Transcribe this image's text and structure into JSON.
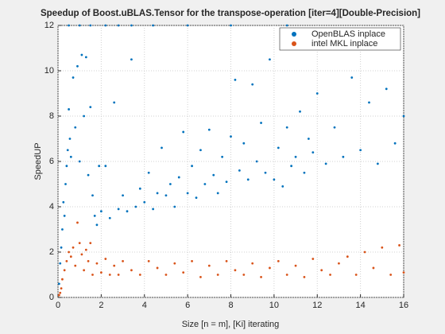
{
  "chart_data": {
    "type": "scatter",
    "title": "Speedup of Boost.uBLAS.Tensor for the transpose-operation [iter=4][Double-Precision]",
    "xlabel": "Size [n = m], [Ki] iterating",
    "ylabel": "SpeedUP",
    "xlim": [
      0,
      16
    ],
    "ylim": [
      0,
      12
    ],
    "xticks": [
      0,
      2,
      4,
      6,
      8,
      10,
      12,
      14,
      16
    ],
    "yticks": [
      0,
      2,
      4,
      6,
      8,
      10,
      12
    ],
    "grid": true,
    "legend": "upper right",
    "series": [
      {
        "name": "OpenBLAS inplace",
        "color": "#0072bd",
        "x": [
          0.05,
          0.1,
          0.15,
          0.2,
          0.25,
          0.3,
          0.35,
          0.4,
          0.45,
          0.5,
          0.55,
          0.6,
          0.7,
          0.8,
          0.9,
          1.0,
          1.1,
          1.2,
          1.3,
          1.4,
          1.5,
          1.6,
          1.7,
          1.8,
          1.9,
          2.0,
          2.2,
          2.4,
          2.6,
          2.8,
          3.0,
          3.2,
          3.4,
          3.6,
          3.8,
          4.0,
          4.2,
          4.4,
          4.6,
          4.8,
          5.0,
          5.2,
          5.4,
          5.6,
          5.8,
          6.0,
          6.2,
          6.4,
          6.6,
          6.8,
          7.0,
          7.2,
          7.4,
          7.6,
          7.8,
          8.0,
          8.2,
          8.4,
          8.6,
          8.8,
          9.0,
          9.2,
          9.4,
          9.6,
          9.8,
          10.0,
          10.2,
          10.4,
          10.6,
          10.8,
          11.0,
          11.2,
          11.4,
          11.6,
          11.8,
          12.0,
          12.4,
          12.8,
          13.2,
          13.6,
          14.0,
          14.4,
          14.8,
          15.2,
          15.6,
          16.0,
          0.5,
          1.0,
          1.5,
          2.2,
          2.8,
          3.4,
          4.4,
          6.0,
          8.0,
          10.6
        ],
        "values": [
          0.6,
          1.5,
          2.2,
          3.0,
          4.2,
          3.6,
          5.0,
          5.8,
          6.5,
          8.3,
          7.0,
          6.2,
          9.7,
          7.5,
          10.2,
          6.0,
          10.7,
          8.0,
          10.6,
          5.4,
          8.4,
          4.5,
          3.6,
          3.2,
          5.8,
          3.8,
          5.8,
          3.5,
          8.6,
          3.9,
          4.5,
          3.8,
          10.5,
          4.0,
          4.8,
          4.2,
          5.5,
          3.9,
          4.6,
          6.6,
          4.5,
          5.0,
          4.0,
          5.3,
          7.3,
          4.6,
          5.8,
          4.4,
          6.5,
          5.0,
          7.4,
          5.4,
          4.6,
          6.2,
          5.1,
          7.1,
          9.6,
          5.6,
          6.8,
          5.2,
          9.4,
          6.0,
          7.7,
          5.5,
          10.5,
          5.2,
          6.6,
          4.9,
          7.5,
          5.8,
          6.2,
          8.2,
          5.5,
          7.0,
          6.4,
          9.0,
          5.9,
          7.5,
          6.2,
          9.7,
          6.5,
          8.6,
          5.9,
          9.2,
          6.8,
          8.0,
          12,
          12,
          12,
          12,
          12,
          12,
          12,
          12,
          12,
          12
        ]
      },
      {
        "name": "intel MKL inplace",
        "color": "#d95319",
        "x": [
          0.05,
          0.1,
          0.15,
          0.2,
          0.3,
          0.4,
          0.5,
          0.6,
          0.7,
          0.8,
          0.9,
          1.0,
          1.1,
          1.2,
          1.3,
          1.4,
          1.5,
          1.6,
          1.8,
          2.0,
          2.2,
          2.4,
          2.6,
          2.8,
          3.0,
          3.4,
          3.8,
          4.2,
          4.6,
          5.0,
          5.4,
          5.8,
          6.2,
          6.6,
          7.0,
          7.4,
          7.8,
          8.2,
          8.6,
          9.0,
          9.4,
          9.8,
          10.2,
          10.6,
          11.0,
          11.4,
          11.8,
          12.2,
          12.6,
          13.0,
          13.4,
          13.8,
          14.2,
          14.6,
          15.0,
          15.4,
          15.8,
          16.0
        ],
        "values": [
          0.1,
          0.2,
          0.4,
          0.8,
          1.2,
          1.6,
          2.0,
          1.8,
          2.2,
          1.4,
          3.3,
          2.4,
          1.9,
          1.2,
          2.1,
          1.6,
          2.4,
          1.0,
          1.5,
          1.1,
          1.7,
          1.0,
          1.4,
          1.0,
          1.6,
          1.2,
          1.0,
          1.6,
          1.3,
          1.0,
          1.5,
          1.1,
          1.6,
          0.9,
          1.4,
          1.0,
          1.6,
          1.2,
          1.0,
          1.5,
          0.9,
          1.3,
          1.6,
          1.0,
          1.4,
          0.9,
          1.7,
          1.2,
          1.0,
          1.5,
          1.8,
          1.0,
          2.0,
          1.3,
          2.2,
          1.0,
          2.3,
          1.1
        ]
      }
    ]
  }
}
